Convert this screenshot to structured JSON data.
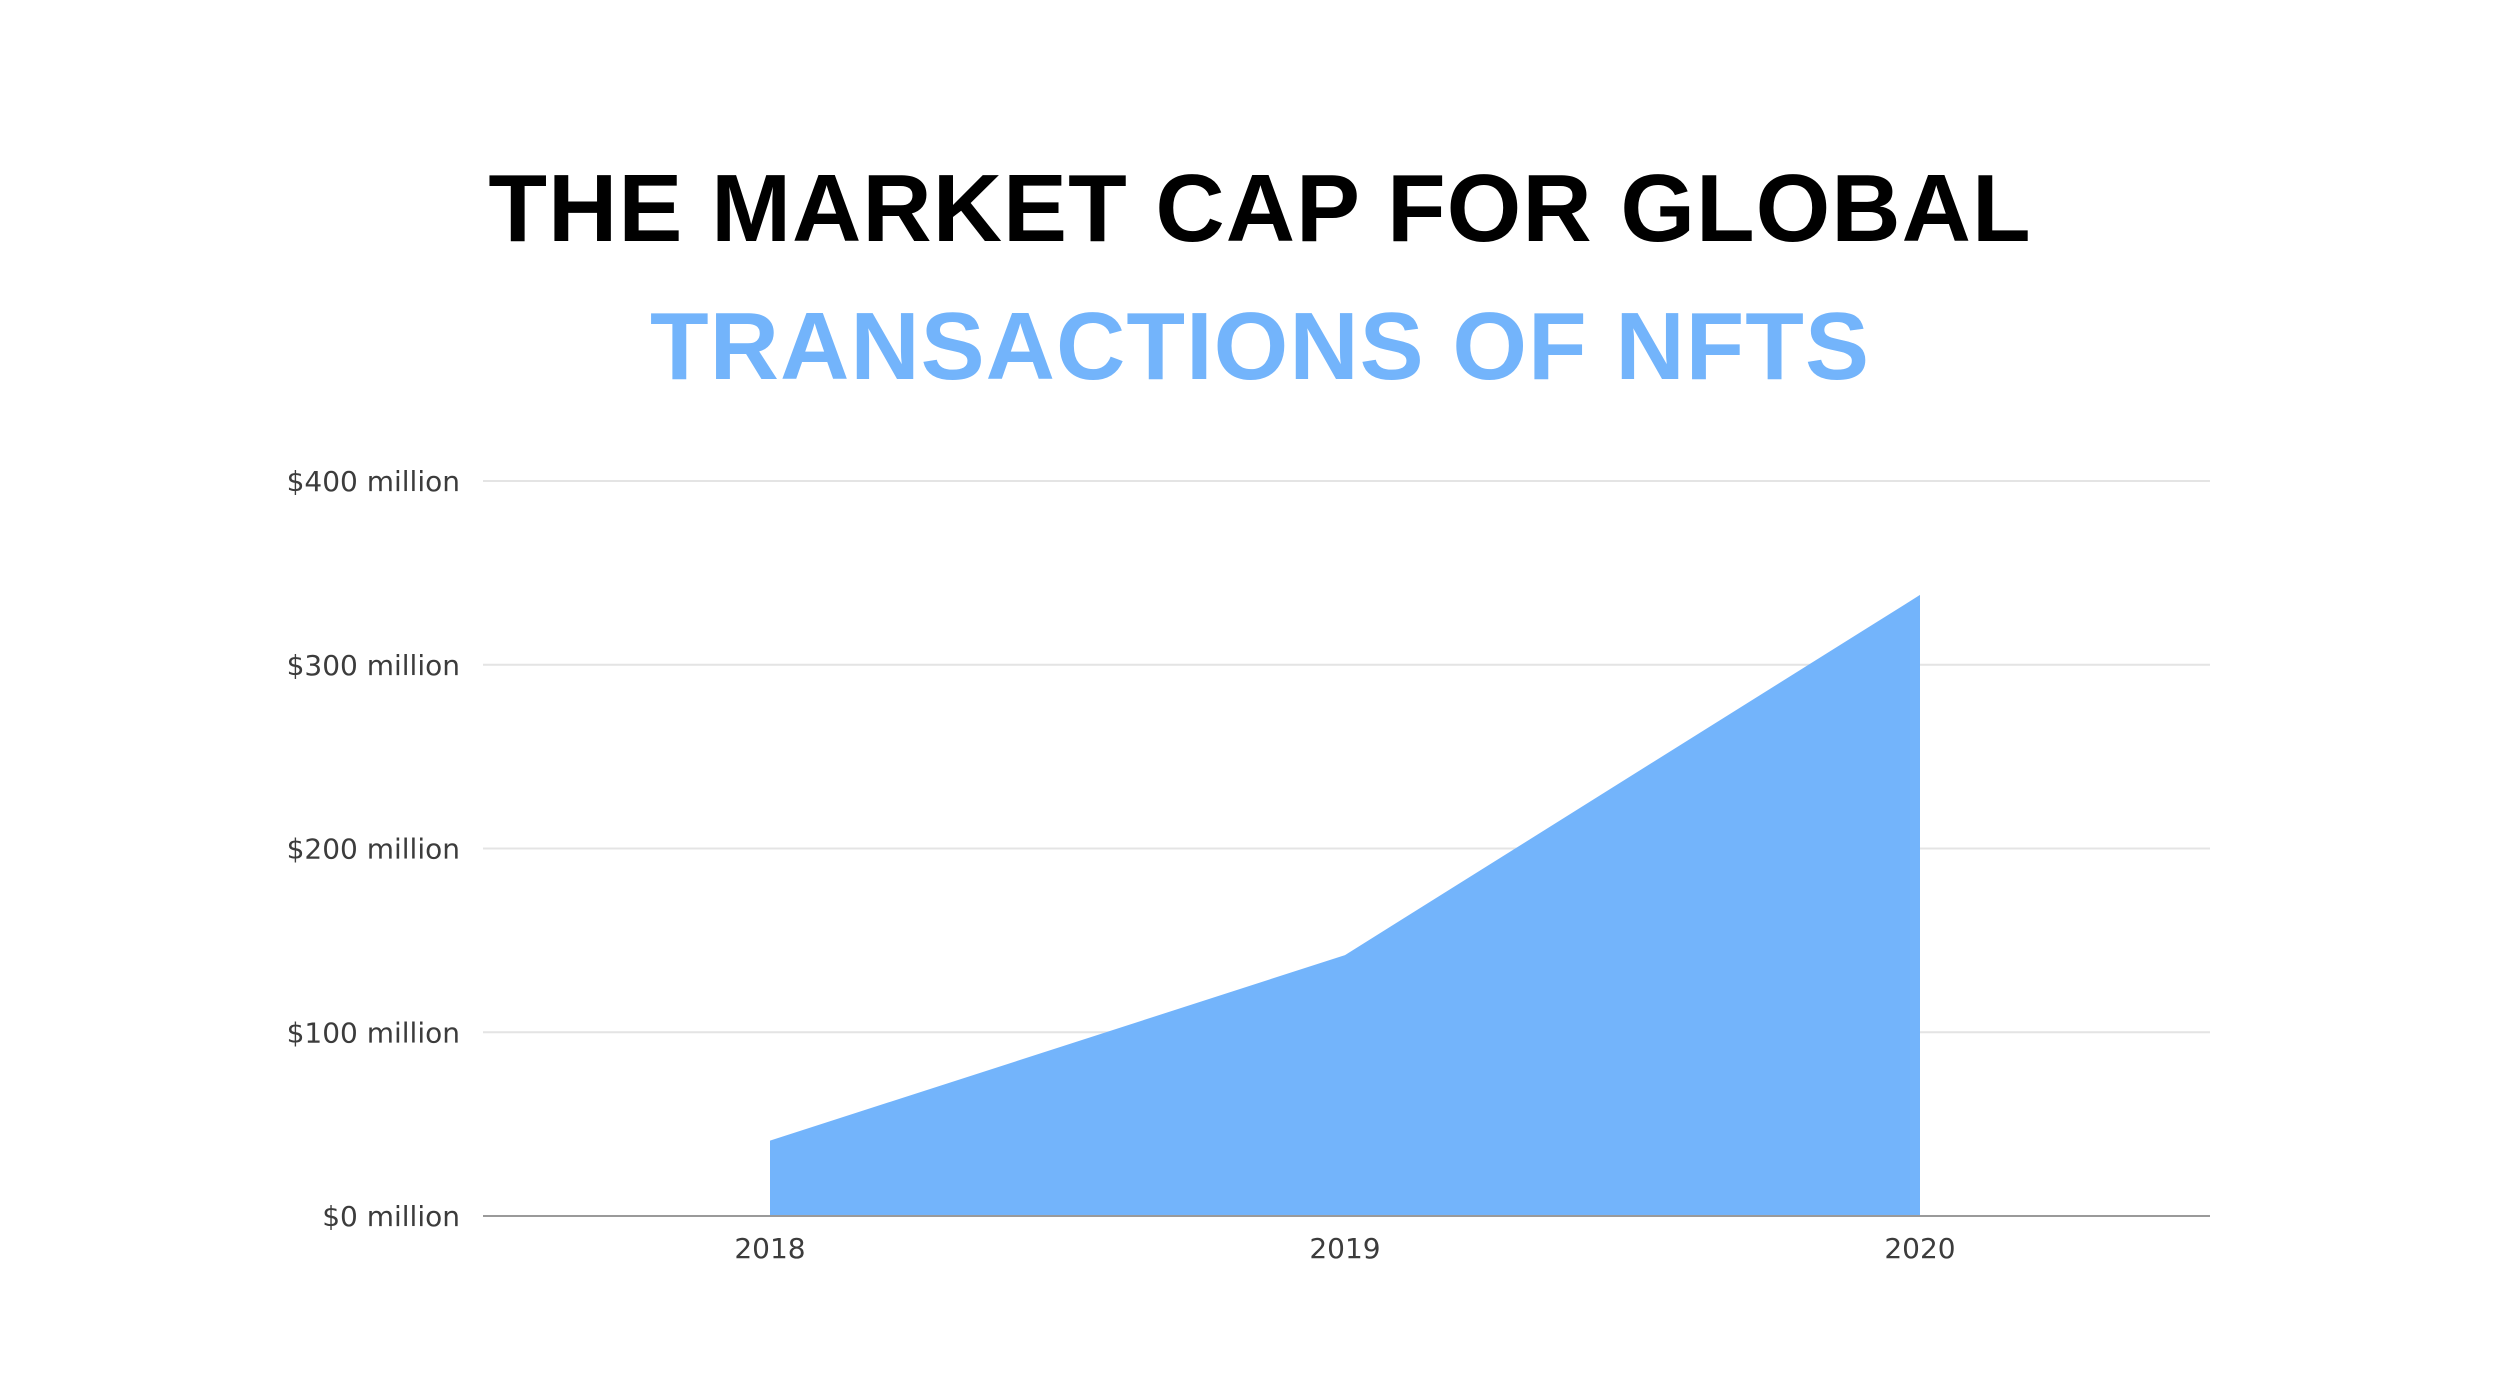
{
  "title": {
    "line1": "THE MARKET CAP FOR GLOBAL",
    "line2": "TRANSACTIONS OF NFTS",
    "line2_color": "#73b4fb"
  },
  "chart_data": {
    "type": "area",
    "title": "THE MARKET CAP FOR GLOBAL TRANSACTIONS OF NFTS",
    "categories": [
      "2018",
      "2019",
      "2020"
    ],
    "x": [
      "2018",
      "2019",
      "2020"
    ],
    "values": [
      41,
      142,
      338
    ],
    "series": [
      {
        "values": [
          41,
          142,
          338
        ],
        "color": "#73b4fb"
      }
    ],
    "xlabel": "",
    "ylabel": "",
    "ylim": [
      0,
      400
    ],
    "yticks": [
      0,
      100,
      200,
      300,
      400
    ],
    "ytick_labels": [
      "$0 million",
      "$100 million",
      "$200 million",
      "$300 million",
      "$400 million"
    ],
    "unit": "$ million",
    "grid": true,
    "legend": "none",
    "colors": {
      "area": "#73b4fb",
      "grid": "#e4e4e4",
      "axis": "#9a9a9a",
      "tick_text": "#3c3c3c"
    }
  }
}
